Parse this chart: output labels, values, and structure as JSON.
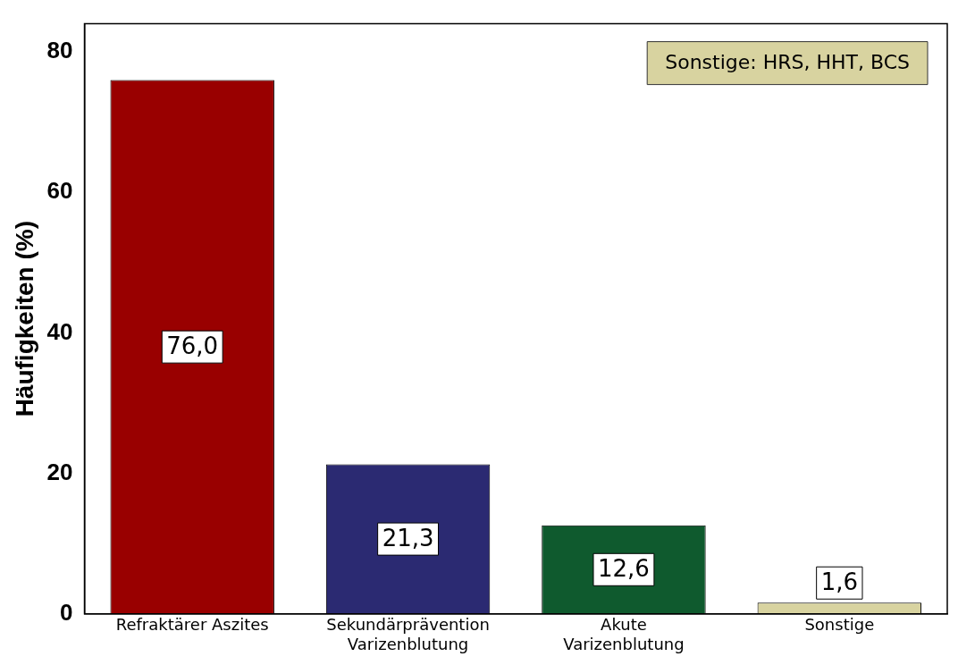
{
  "chart_data": {
    "type": "bar",
    "ylabel": "Häufigkeiten (%)",
    "categories": [
      "Refraktärer Aszites",
      "Sekundärprävention\nVarizenblutung",
      "Akute\nVarizenblutung",
      "Sonstige"
    ],
    "values": [
      76.0,
      21.3,
      12.6,
      1.6
    ],
    "colors": [
      "#990000",
      "#2b2a72",
      "#0f5a2e",
      "#d8d3a0"
    ],
    "value_labels": [
      "76,0",
      "21,3",
      "12,6",
      "1,6"
    ],
    "ylim": [
      0,
      84
    ],
    "yticks": [
      0,
      20,
      40,
      60,
      80
    ],
    "grid": false,
    "legend": false,
    "annotations": [
      "Sonstige: HRS, HHT, BCS"
    ]
  }
}
